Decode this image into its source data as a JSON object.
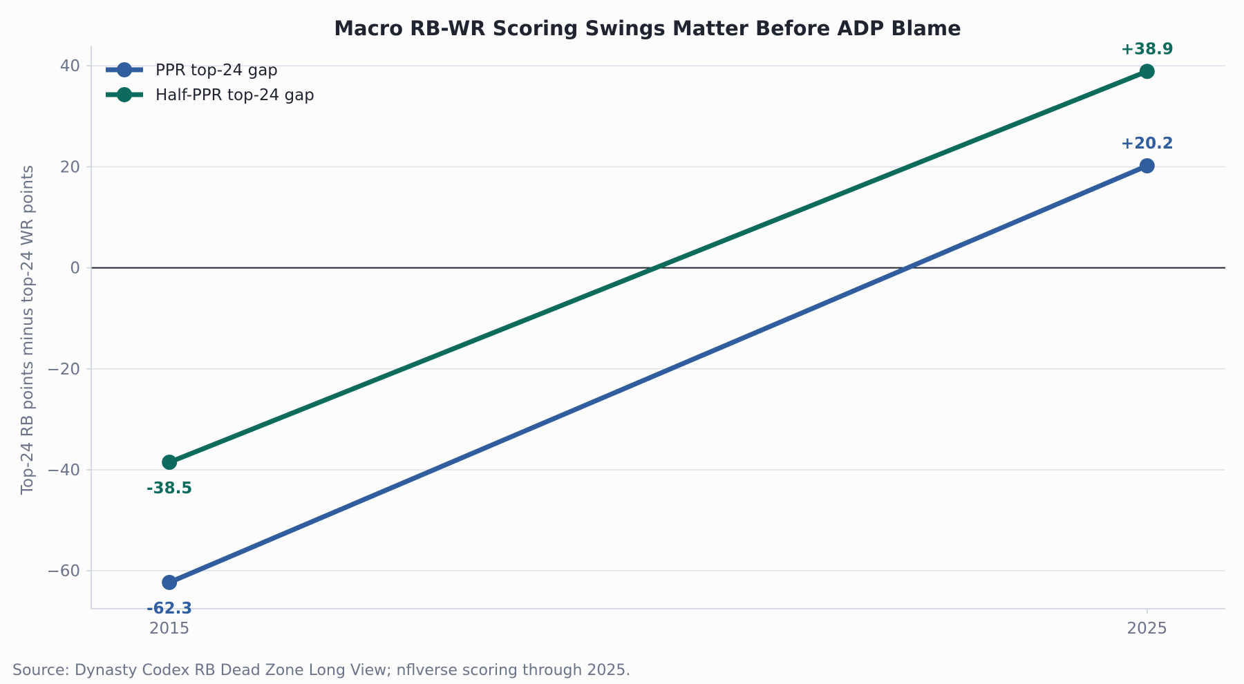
{
  "source_note": "Source: Dynasty Codex RB Dead Zone Long View; nflverse scoring through 2025.",
  "chart_data": {
    "type": "line",
    "title": "Macro RB-WR Scoring Swings Matter Before ADP Blame",
    "xlabel": "",
    "ylabel": "Top-24 RB points minus top-24 WR points",
    "x": [
      2015,
      2025
    ],
    "xticks": [
      "2015",
      "2025"
    ],
    "yticks": [
      40,
      20,
      0,
      -20,
      -40,
      -60
    ],
    "ytick_labels": [
      "40",
      "20",
      "0",
      "−20",
      "−40",
      "−60"
    ],
    "xlim": [
      2014.2,
      2025.8
    ],
    "ylim": [
      -67.5,
      44
    ],
    "grid": "horizontal",
    "zero_line": true,
    "legend_position": "top-left",
    "series": [
      {
        "name": "PPR top-24 gap",
        "color": "#2f5d9e",
        "values": [
          -62.3,
          20.2
        ],
        "labels": [
          "-62.3",
          "+20.2"
        ]
      },
      {
        "name": "Half-PPR top-24 gap",
        "color": "#0d6b5e",
        "values": [
          -38.5,
          38.9
        ],
        "labels": [
          "-38.5",
          "+38.9"
        ]
      }
    ]
  }
}
